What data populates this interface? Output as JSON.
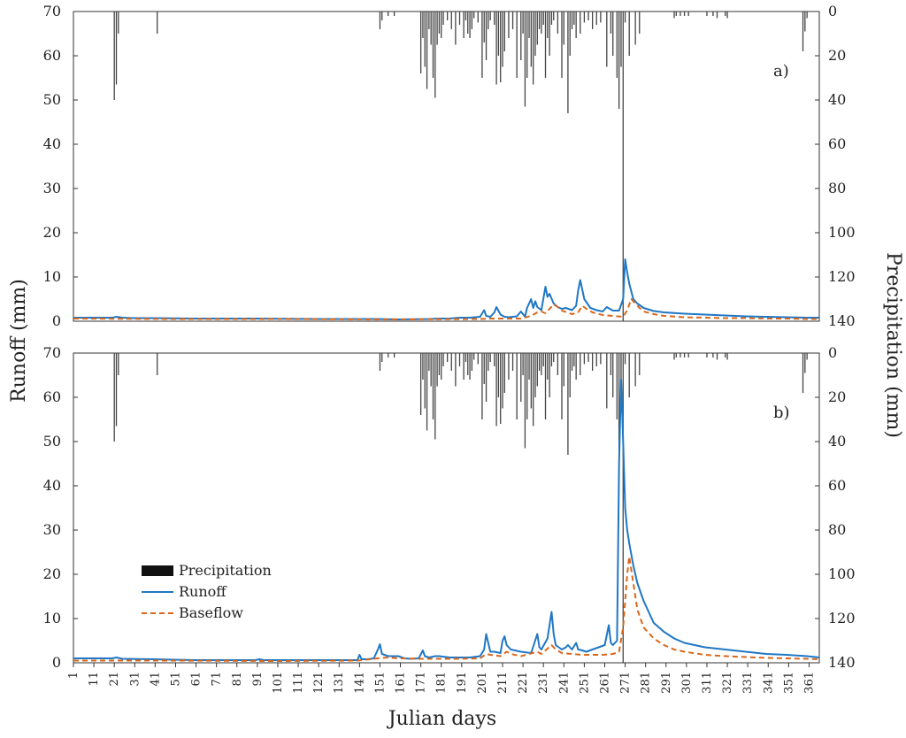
{
  "chart_data": {
    "type": "line",
    "xlabel": "Julian days",
    "ylabel_left": "Runoff (mm)",
    "ylabel_right": "Precipitation (mm)",
    "ylim_left": [
      0,
      70
    ],
    "ylim_right_inverted": [
      0,
      140
    ],
    "xlim": [
      1,
      366
    ],
    "y_ticks_left": [
      "0",
      "10",
      "20",
      "30",
      "40",
      "50",
      "60",
      "70"
    ],
    "y_ticks_right": [
      "0",
      "20",
      "40",
      "60",
      "80",
      "100",
      "120",
      "140"
    ],
    "x_ticks": [
      "1",
      "11",
      "21",
      "31",
      "41",
      "51",
      "61",
      "71",
      "81",
      "91",
      "101",
      "111",
      "121",
      "131",
      "141",
      "151",
      "161",
      "171",
      "181",
      "191",
      "201",
      "211",
      "221",
      "231",
      "241",
      "251",
      "261",
      "271",
      "281",
      "291",
      "301",
      "311",
      "321",
      "331",
      "341",
      "351",
      "361"
    ],
    "legend": {
      "placement": "lower-left of panel b",
      "entries": [
        {
          "name": "Precipitation",
          "kind": "bar",
          "color": "#111111"
        },
        {
          "name": "Runoff",
          "kind": "line",
          "color": "#1f77c4"
        },
        {
          "name": "Baseflow",
          "kind": "dashed-line",
          "color": "#d9671c"
        }
      ]
    },
    "precipitation": {
      "color": "#444444",
      "days": [
        21,
        22,
        23,
        42,
        151,
        152,
        155,
        158,
        171,
        172,
        173,
        174,
        175,
        176,
        177,
        178,
        179,
        180,
        181,
        182,
        184,
        186,
        188,
        190,
        192,
        193,
        194,
        195,
        196,
        197,
        199,
        201,
        202,
        203,
        204,
        205,
        207,
        208,
        209,
        210,
        211,
        212,
        214,
        216,
        218,
        220,
        221,
        222,
        223,
        224,
        225,
        226,
        227,
        228,
        229,
        230,
        231,
        232,
        233,
        234,
        235,
        236,
        238,
        240,
        241,
        243,
        244,
        245,
        246,
        247,
        249,
        251,
        253,
        255,
        257,
        259,
        262,
        264,
        265,
        267,
        268,
        269,
        270,
        271,
        273,
        276,
        278,
        295,
        296,
        298,
        300,
        302,
        311,
        314,
        316,
        320,
        321,
        358,
        359,
        360
      ],
      "values": [
        40,
        33,
        10,
        10,
        8,
        4,
        2,
        2,
        28,
        12,
        25,
        35,
        8,
        15,
        30,
        39,
        15,
        10,
        12,
        6,
        4,
        8,
        15,
        6,
        12,
        4,
        10,
        12,
        8,
        3,
        5,
        30,
        14,
        22,
        8,
        4,
        6,
        33,
        20,
        32,
        25,
        18,
        12,
        8,
        30,
        22,
        10,
        43,
        30,
        12,
        25,
        33,
        20,
        15,
        8,
        10,
        6,
        30,
        12,
        20,
        6,
        4,
        10,
        30,
        15,
        46,
        20,
        8,
        6,
        12,
        10,
        5,
        4,
        8,
        6,
        5,
        25,
        10,
        20,
        30,
        44,
        25,
        140,
        5,
        20,
        15,
        10,
        3,
        2,
        2,
        2,
        2,
        2,
        2,
        3,
        2,
        3,
        18,
        9,
        3
      ]
    },
    "panels": [
      {
        "label": "a)",
        "series": [
          {
            "name": "Runoff",
            "color": "#1f77c4",
            "x": [
              1,
              20,
              22,
              25,
              30,
              40,
              60,
              90,
              120,
              145,
              150,
              160,
              175,
              180,
              185,
              190,
              195,
              200,
              202,
              203,
              205,
              207,
              208,
              210,
              212,
              214,
              216,
              218,
              220,
              222,
              223,
              225,
              226,
              227,
              228,
              230,
              232,
              233,
              234,
              236,
              238,
              240,
              242,
              245,
              247,
              248,
              249,
              251,
              254,
              257,
              260,
              262,
              265,
              268,
              270,
              271,
              272,
              273,
              275,
              277,
              280,
              285,
              290,
              300,
              310,
              320,
              330,
              340,
              350,
              360,
              366
            ],
            "values": [
              0.8,
              0.8,
              1.0,
              0.8,
              0.7,
              0.7,
              0.6,
              0.6,
              0.5,
              0.5,
              0.5,
              0.4,
              0.5,
              0.6,
              0.6,
              0.8,
              0.8,
              1.0,
              2.5,
              1.2,
              1.0,
              2.0,
              3.2,
              1.5,
              1.0,
              0.9,
              1.0,
              1.1,
              2.2,
              1.0,
              3.0,
              5.0,
              3.0,
              4.5,
              3.2,
              2.5,
              7.8,
              5.5,
              6.2,
              4.0,
              3.2,
              2.8,
              3.0,
              2.5,
              3.5,
              7.0,
              9.3,
              5.0,
              3.0,
              2.5,
              2.2,
              3.2,
              2.4,
              2.4,
              5.0,
              14.0,
              11.0,
              8.5,
              5.0,
              4.0,
              3.0,
              2.3,
              2.0,
              1.7,
              1.5,
              1.3,
              1.1,
              1.0,
              0.9,
              0.8,
              0.8
            ]
          },
          {
            "name": "Baseflow",
            "color": "#d9671c",
            "x": [
              1,
              50,
              100,
              150,
              200,
              205,
              210,
              215,
              220,
              225,
              228,
              230,
              232,
              234,
              236,
              238,
              240,
              245,
              248,
              250,
              252,
              255,
              260,
              265,
              270,
              272,
              274,
              276,
              278,
              280,
              285,
              290,
              300,
              310,
              320,
              330,
              340,
              350,
              360,
              366
            ],
            "values": [
              0.6,
              0.5,
              0.5,
              0.4,
              0.5,
              0.6,
              0.6,
              0.6,
              0.6,
              1.2,
              2.0,
              2.2,
              1.8,
              2.8,
              3.8,
              3.2,
              2.4,
              1.6,
              2.0,
              3.5,
              2.8,
              2.0,
              1.4,
              1.2,
              1.0,
              2.5,
              5.0,
              4.0,
              3.0,
              2.2,
              1.6,
              1.2,
              0.9,
              0.8,
              0.7,
              0.7,
              0.6,
              0.6,
              0.5,
              0.5
            ]
          }
        ]
      },
      {
        "label": "b)",
        "series": [
          {
            "name": "Runoff",
            "color": "#1f77c4",
            "x": [
              1,
              20,
              22,
              25,
              40,
              60,
              90,
              92,
              94,
              130,
              140,
              141,
              142,
              145,
              148,
              150,
              151,
              152,
              155,
              160,
              163,
              166,
              170,
              172,
              173,
              175,
              178,
              180,
              185,
              190,
              195,
              200,
              202,
              203,
              205,
              207,
              210,
              211,
              212,
              213,
              215,
              220,
              225,
              228,
              229,
              230,
              233,
              235,
              236,
              237,
              240,
              242,
              243,
              245,
              247,
              248,
              250,
              252,
              255,
              258,
              261,
              263,
              264,
              265,
              267,
              268,
              269,
              270,
              271,
              272,
              273,
              275,
              277,
              280,
              283,
              285,
              290,
              295,
              300,
              310,
              320,
              330,
              340,
              350,
              360,
              366
            ],
            "values": [
              1.0,
              1.0,
              1.2,
              0.9,
              0.8,
              0.6,
              0.6,
              0.8,
              0.6,
              0.6,
              0.6,
              1.8,
              0.8,
              0.8,
              1.0,
              3.0,
              4.2,
              2.0,
              1.5,
              1.5,
              1.0,
              0.9,
              1.0,
              2.8,
              1.5,
              1.2,
              1.5,
              1.5,
              1.2,
              1.2,
              1.2,
              1.5,
              3.0,
              6.5,
              2.5,
              2.5,
              2.2,
              5.0,
              6.0,
              4.0,
              3.0,
              2.5,
              2.2,
              6.5,
              3.5,
              3.0,
              5.5,
              11.5,
              6.5,
              4.0,
              3.0,
              3.5,
              4.0,
              3.0,
              4.5,
              3.0,
              2.8,
              2.5,
              3.0,
              3.5,
              4.0,
              8.5,
              4.5,
              4.0,
              5.0,
              45.0,
              64.0,
              50.0,
              35.0,
              30.0,
              27.0,
              22.0,
              18.0,
              14.0,
              11.0,
              9.0,
              7.0,
              5.5,
              4.5,
              3.5,
              3.0,
              2.5,
              2.0,
              1.8,
              1.5,
              1.2
            ]
          },
          {
            "name": "Baseflow",
            "color": "#d9671c",
            "x": [
              1,
              50,
              100,
              140,
              150,
              155,
              160,
              170,
              180,
              190,
              200,
              203,
              205,
              210,
              213,
              215,
              220,
              228,
              230,
              235,
              237,
              240,
              245,
              250,
              255,
              260,
              265,
              268,
              270,
              272,
              273,
              275,
              277,
              280,
              285,
              290,
              295,
              300,
              310,
              320,
              330,
              340,
              350,
              360,
              366
            ],
            "values": [
              0.5,
              0.5,
              0.4,
              0.5,
              1.0,
              1.2,
              1.0,
              0.9,
              0.9,
              0.9,
              1.0,
              2.0,
              1.8,
              1.5,
              2.5,
              2.0,
              1.5,
              2.5,
              2.0,
              4.0,
              3.0,
              2.2,
              2.0,
              1.8,
              1.8,
              1.8,
              2.0,
              2.5,
              8.0,
              20.0,
              24.0,
              18.0,
              12.0,
              8.0,
              5.5,
              4.0,
              3.0,
              2.5,
              1.8,
              1.5,
              1.3,
              1.1,
              1.0,
              0.9,
              0.8
            ]
          }
        ]
      }
    ]
  }
}
